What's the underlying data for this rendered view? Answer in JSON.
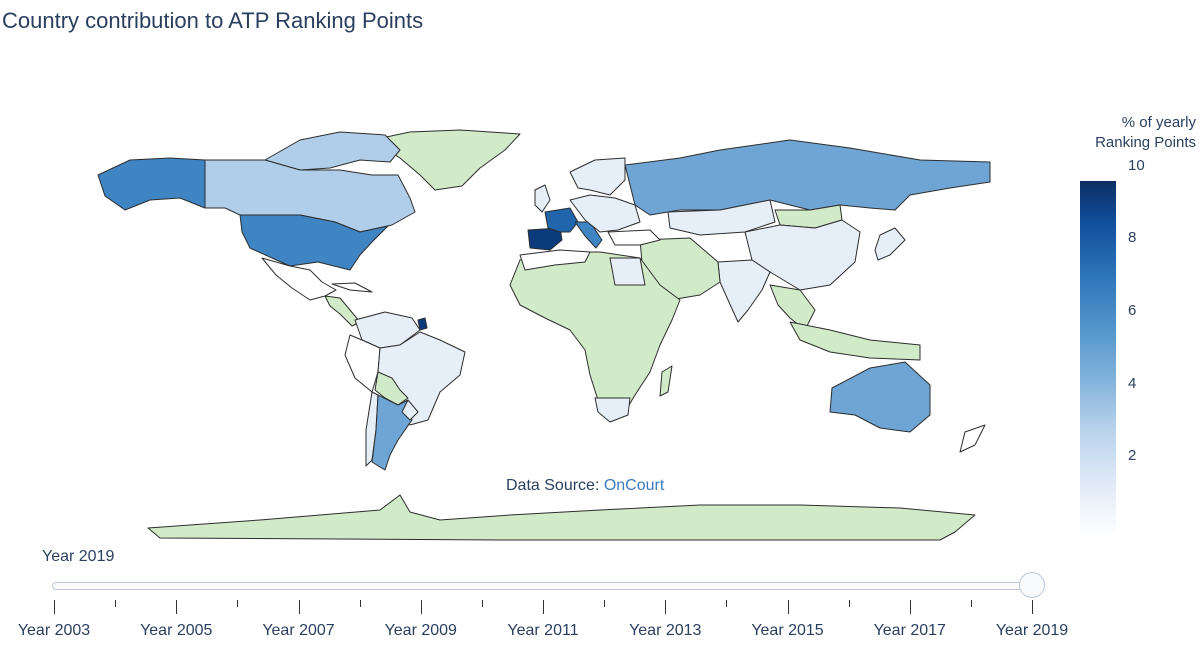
{
  "title": "Country contribution to ATP Ranking Points",
  "colorbar": {
    "title_line1": "% of yearly",
    "title_line2": "Ranking Points",
    "ticks": [
      "10",
      "8",
      "6",
      "4",
      "2"
    ]
  },
  "source": {
    "prefix": "Data Source: ",
    "link": "OnCourt"
  },
  "slider": {
    "current_label": "Year 2019",
    "labels": [
      "Year 2003",
      "Year 2005",
      "Year 2007",
      "Year 2009",
      "Year 2011",
      "Year 2013",
      "Year 2015",
      "Year 2017",
      "Year 2019"
    ],
    "selected_index": 8
  },
  "colors": {
    "no_data": "#d1ebc8",
    "very_low": "#ffffff",
    "low": "#e6eef8",
    "lowmid": "#b0cde9",
    "mid": "#6ea5d4",
    "midhigh": "#3f85c4",
    "high": "#2166ac",
    "top": "#0b3a7d"
  }
}
